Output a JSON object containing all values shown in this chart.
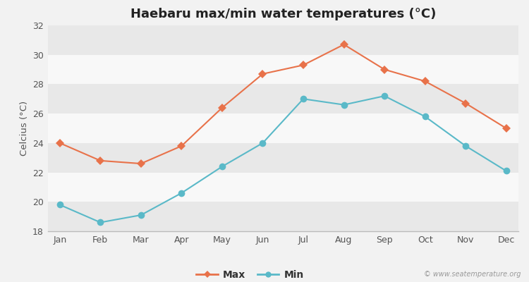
{
  "title": "Haebaru max/min water temperatures (°C)",
  "ylabel": "Celcius (°C)",
  "months": [
    "Jan",
    "Feb",
    "Mar",
    "Apr",
    "May",
    "Jun",
    "Jul",
    "Aug",
    "Sep",
    "Oct",
    "Nov",
    "Dec"
  ],
  "max_temps": [
    24.0,
    22.8,
    22.6,
    23.8,
    26.4,
    28.7,
    29.3,
    30.7,
    29.0,
    28.2,
    26.7,
    25.0
  ],
  "min_temps": [
    19.8,
    18.6,
    19.1,
    20.6,
    22.4,
    24.0,
    27.0,
    26.6,
    27.2,
    25.8,
    23.8,
    22.1
  ],
  "max_color": "#e8724a",
  "min_color": "#5ab9c8",
  "bg_color": "#f2f2f2",
  "plot_bg_color": "#f2f2f2",
  "band_color_even": "#e8e8e8",
  "band_color_odd": "#f8f8f8",
  "ylim": [
    18,
    32
  ],
  "yticks": [
    18,
    20,
    22,
    24,
    26,
    28,
    30,
    32
  ],
  "watermark": "© www.seatemperature.org",
  "legend_max": "Max",
  "legend_min": "Min",
  "title_fontsize": 13,
  "label_fontsize": 9.5,
  "tick_fontsize": 9,
  "max_marker": "D",
  "min_marker": "o",
  "max_markersize": 6,
  "min_markersize": 7,
  "linewidth": 1.5
}
